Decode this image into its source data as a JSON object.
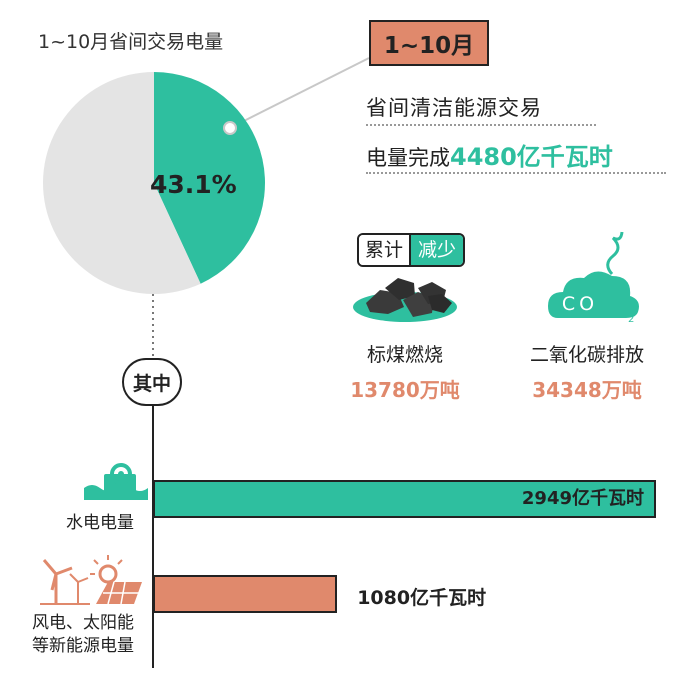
{
  "chart_data": [
    {
      "type": "pie",
      "title": "1~10月省间交易电量",
      "slices": [
        {
          "name": "省间清洁能源交易",
          "value": 43.1,
          "color": "#2ebf9f"
        },
        {
          "name": "",
          "value": 56.9,
          "color": "#e4e4e4"
        }
      ],
      "slice_label": "43.1%"
    },
    {
      "type": "bar",
      "orientation": "horizontal",
      "categories": [
        "水电电量",
        "风电、太阳能等新能源电量"
      ],
      "values": [
        2949,
        1080
      ],
      "value_labels": [
        "2949亿千瓦时",
        "1080亿千瓦时"
      ],
      "colors": [
        "#2ebf9f",
        "#e0896c"
      ],
      "xlim": [
        0,
        2949
      ]
    }
  ],
  "callout": {
    "period": "1~10月",
    "line1": "省间清洁能源交易",
    "line2_prefix": "电量完成",
    "line2_highlight": "4480亿千瓦时"
  },
  "reduction": {
    "tag_left": "累计",
    "tag_right": "减少",
    "items": [
      {
        "label": "标煤燃烧",
        "value": "13780万吨",
        "icon": "coal-icon"
      },
      {
        "label": "二氧化碳排放",
        "value": "34348万吨",
        "icon": "co2-cloud-icon",
        "icon_text": "CO",
        "icon_sub": "2"
      }
    ]
  },
  "breakdown": {
    "label": "其中",
    "category_labels": [
      "水电电量",
      "风电、太阳能",
      "等新能源电量"
    ]
  },
  "colors": {
    "accent_green": "#2ebf9f",
    "accent_orange": "#e0896c",
    "pie_gray": "#e4e4e4"
  }
}
